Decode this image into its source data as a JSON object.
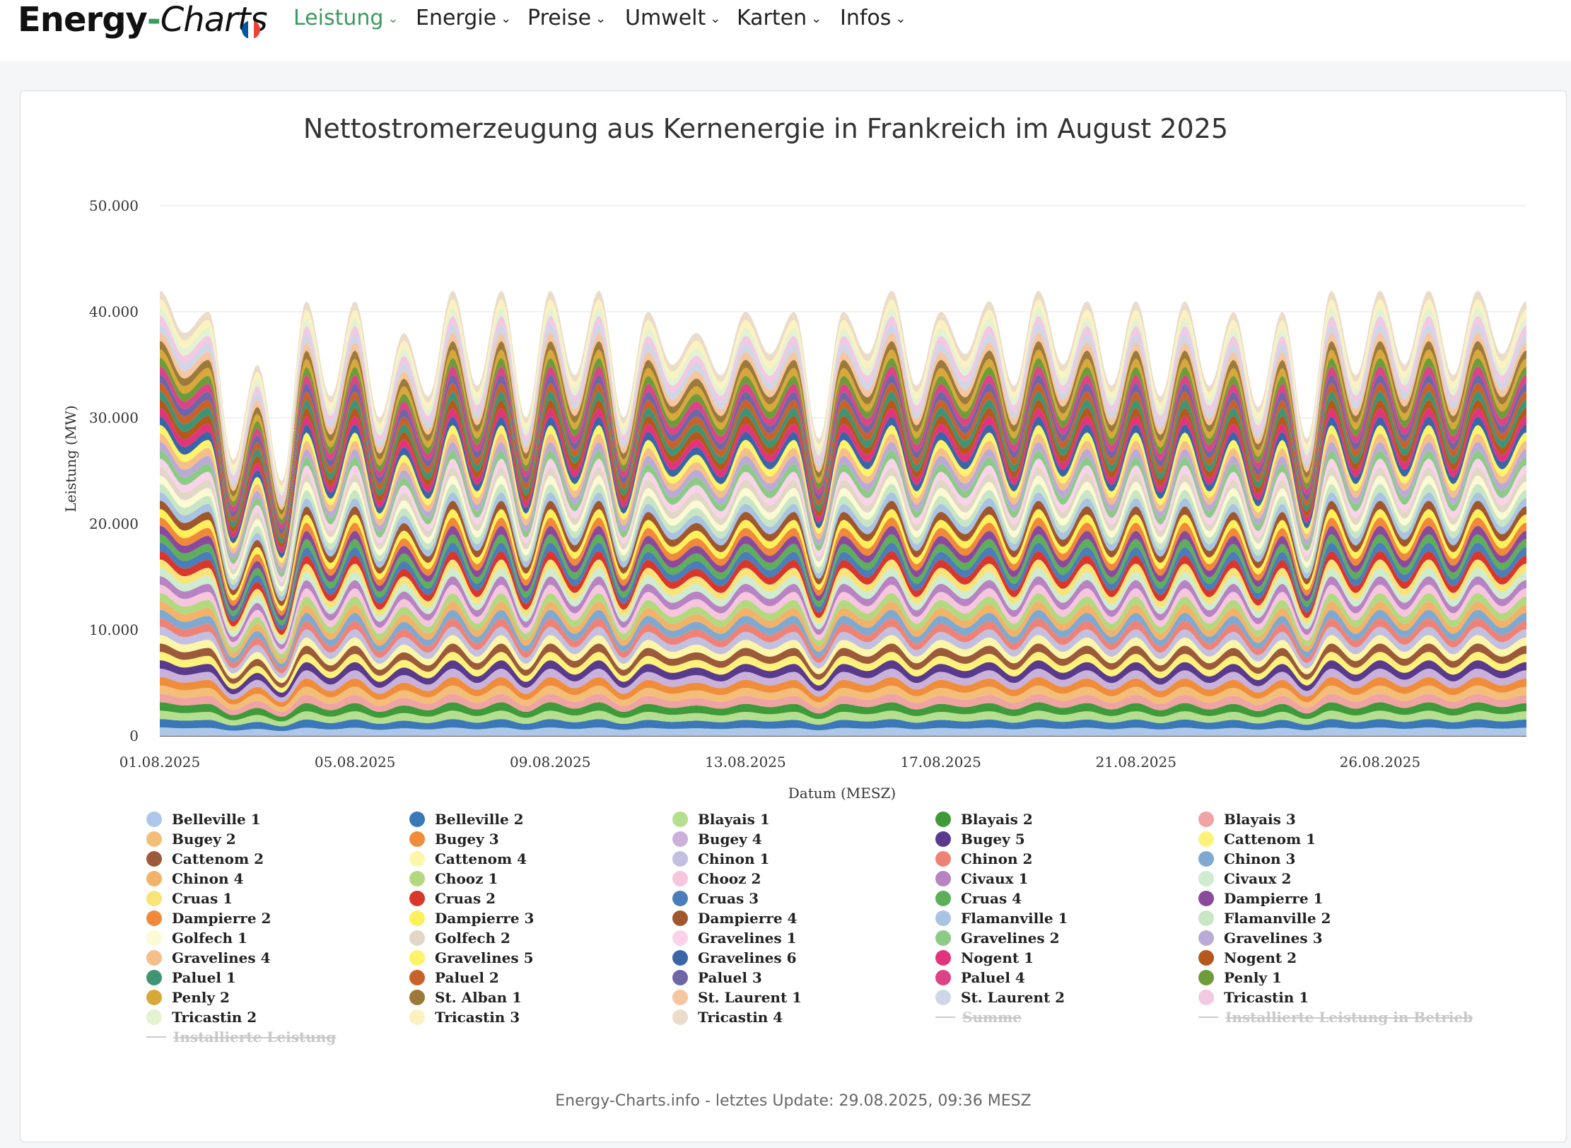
{
  "header": {
    "logo_part1": "Energy",
    "logo_hyphen": "-",
    "logo_part2": "Charts",
    "flag_colors": [
      "#0055a4",
      "#ffffff",
      "#ef4135"
    ],
    "accent_color": "#3a9a5c",
    "nav": [
      {
        "label": "Leistung",
        "active": true
      },
      {
        "label": "Energie",
        "active": false
      },
      {
        "label": "Preise",
        "active": false
      },
      {
        "label": "Umwelt",
        "active": false
      },
      {
        "label": "Karten",
        "active": false
      },
      {
        "label": "Infos",
        "active": false
      }
    ],
    "chevron_icon": "chevron-down-icon"
  },
  "chart_data": {
    "type": "area",
    "stacked": true,
    "title": "Nettostromerzeugung aus Kernenergie in Frankreich im August 2025",
    "xlabel": "Datum (MESZ)",
    "ylabel": "Leistung (MW)",
    "ylim": [
      0,
      50000
    ],
    "yticks": [
      "0",
      "10.000",
      "20.000",
      "30.000",
      "40.000",
      "50.000"
    ],
    "xlim": [
      "01.08.2025",
      "29.08.2025"
    ],
    "xticks": [
      "01.08.2025",
      "05.08.2025",
      "09.08.2025",
      "13.08.2025",
      "17.08.2025",
      "21.08.2025",
      "26.08.2025"
    ],
    "grid": "horizontal",
    "x_days": [
      1,
      1.5,
      2,
      2.5,
      3,
      3.5,
      4,
      4.5,
      5,
      5.5,
      6,
      6.5,
      7,
      7.5,
      8,
      8.5,
      9,
      9.5,
      10,
      10.5,
      11,
      11.5,
      12,
      12.5,
      13,
      13.5,
      14,
      14.5,
      15,
      15.5,
      16,
      16.5,
      17,
      17.5,
      18,
      18.5,
      19,
      19.5,
      20,
      20.5,
      21,
      21.5,
      22,
      22.5,
      23,
      23.5,
      24,
      24.5,
      25,
      25.5,
      26,
      26.5,
      27,
      27.5,
      28,
      28.5,
      29
    ],
    "total": [
      42000,
      38000,
      40000,
      26000,
      35000,
      24000,
      41000,
      32000,
      41000,
      30000,
      38000,
      32000,
      42000,
      33000,
      42000,
      30000,
      42000,
      34000,
      42000,
      30000,
      40000,
      35000,
      38000,
      34000,
      40000,
      36000,
      40000,
      28000,
      40000,
      36000,
      42000,
      33000,
      40000,
      36000,
      41000,
      33000,
      42000,
      35000,
      41000,
      33000,
      41000,
      32000,
      41000,
      33000,
      40000,
      31000,
      40000,
      28000,
      42000,
      34000,
      42000,
      35000,
      42000,
      34000,
      42000,
      36000,
      41000
    ],
    "series": [
      {
        "name": "Belleville 1",
        "color": "#aec7e8"
      },
      {
        "name": "Belleville 2",
        "color": "#3a78b8"
      },
      {
        "name": "Blayais 1",
        "color": "#b5de8e"
      },
      {
        "name": "Blayais 2",
        "color": "#3f9a3a"
      },
      {
        "name": "Blayais 3",
        "color": "#f0a3a3"
      },
      {
        "name": "Bugey 2",
        "color": "#f2be78"
      },
      {
        "name": "Bugey 3",
        "color": "#f08d3a"
      },
      {
        "name": "Bugey 4",
        "color": "#c9b1d9"
      },
      {
        "name": "Bugey 5",
        "color": "#5a3a8c"
      },
      {
        "name": "Cattenom 1",
        "color": "#fff27a"
      },
      {
        "name": "Cattenom 2",
        "color": "#9c5a3a"
      },
      {
        "name": "Cattenom 4",
        "color": "#fcf7a8"
      },
      {
        "name": "Chinon 1",
        "color": "#c2bfe0"
      },
      {
        "name": "Chinon 2",
        "color": "#ee8276"
      },
      {
        "name": "Chinon 3",
        "color": "#7ea9d0"
      },
      {
        "name": "Chinon 4",
        "color": "#f2b26a"
      },
      {
        "name": "Chooz 1",
        "color": "#b3d980"
      },
      {
        "name": "Chooz 2",
        "color": "#f6c6de"
      },
      {
        "name": "Civaux 1",
        "color": "#b783c2"
      },
      {
        "name": "Civaux 2",
        "color": "#cfebd0"
      },
      {
        "name": "Cruas 1",
        "color": "#f9e47a"
      },
      {
        "name": "Cruas 2",
        "color": "#d9372c"
      },
      {
        "name": "Cruas 3",
        "color": "#4a7dba"
      },
      {
        "name": "Cruas 4",
        "color": "#5eae5a"
      },
      {
        "name": "Dampierre 1",
        "color": "#8a4a9c"
      },
      {
        "name": "Dampierre 2",
        "color": "#f08a3a"
      },
      {
        "name": "Dampierre 3",
        "color": "#fdf05a"
      },
      {
        "name": "Dampierre 4",
        "color": "#a1572e"
      },
      {
        "name": "Flamanville 1",
        "color": "#a9c3e3"
      },
      {
        "name": "Flamanville 2",
        "color": "#c8e6c4"
      },
      {
        "name": "Golfech 1",
        "color": "#fbfad2"
      },
      {
        "name": "Golfech 2",
        "color": "#e2d6c6"
      },
      {
        "name": "Gravelines 1",
        "color": "#fad3ea"
      },
      {
        "name": "Gravelines 2",
        "color": "#8ccb86"
      },
      {
        "name": "Gravelines 3",
        "color": "#bcaad6"
      },
      {
        "name": "Gravelines 4",
        "color": "#f5bf8a"
      },
      {
        "name": "Gravelines 5",
        "color": "#fdf46a"
      },
      {
        "name": "Gravelines 6",
        "color": "#3a66a8"
      },
      {
        "name": "Nogent 1",
        "color": "#e2347c"
      },
      {
        "name": "Nogent 2",
        "color": "#b5581c"
      },
      {
        "name": "Paluel 1",
        "color": "#3e9474"
      },
      {
        "name": "Paluel 2",
        "color": "#c8622a"
      },
      {
        "name": "Paluel 3",
        "color": "#6f66a8"
      },
      {
        "name": "Paluel 4",
        "color": "#dc4486"
      },
      {
        "name": "Penly 1",
        "color": "#6f9c3a"
      },
      {
        "name": "Penly 2",
        "color": "#d9a83a"
      },
      {
        "name": "St. Alban 1",
        "color": "#9c7a3a"
      },
      {
        "name": "St. Laurent 1",
        "color": "#f5c6a0"
      },
      {
        "name": "St. Laurent 2",
        "color": "#cfd6e8"
      },
      {
        "name": "Tricastin 1",
        "color": "#f2c8e2"
      },
      {
        "name": "Tricastin 2",
        "color": "#e4f2d2"
      },
      {
        "name": "Tricastin 3",
        "color": "#fcf2c0"
      },
      {
        "name": "Tricastin 4",
        "color": "#eadcc8"
      }
    ],
    "legend_lines": [
      {
        "name": "Summe",
        "hidden": true
      },
      {
        "name": "Installierte Leistung in Betrieb",
        "hidden": true
      },
      {
        "name": "Installierte Leistung",
        "hidden": true
      }
    ]
  },
  "footer": {
    "text": "Energy-Charts.info - letztes Update: 29.08.2025, 09:36 MESZ"
  }
}
